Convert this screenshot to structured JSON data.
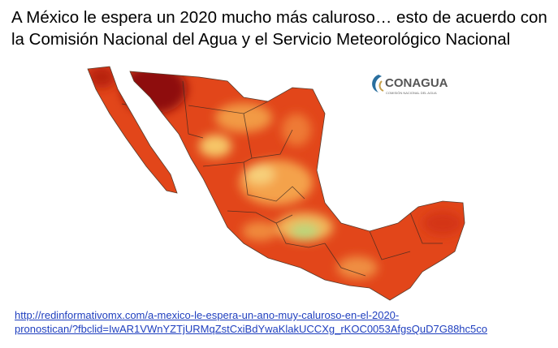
{
  "slide": {
    "title_lines": [
      "A México le espera un 2020 mucho más caluroso… esto de acuerdo con",
      "la Comisión Nacional del Agua y el Servicio Meteorológico Nacional"
    ],
    "logo": {
      "name": "CONAGUA",
      "subtitle": "COMISIÓN NACIONAL DEL AGUA"
    },
    "link_lines": [
      "http://redinformativomx.com/a-mexico-le-espera-un-ano-muy-caluroso-en-el-2020-",
      "pronostican/?fbclid=IwAR1VWnYZTjURMqZstCxiBdYwaKlakUCCXg_rKOC0053AfgsQuD7G88hc5co"
    ]
  }
}
